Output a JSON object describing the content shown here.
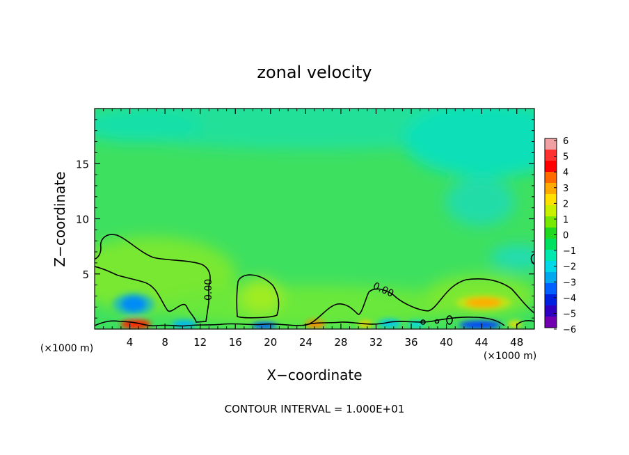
{
  "chart_data": {
    "type": "heatmap",
    "title": "zonal velocity",
    "xlabel": "X−coordinate",
    "ylabel": "Z−coordinate",
    "x_unit_left": "(×1000 m)",
    "x_unit_right": "(×1000 m)",
    "footer": "CONTOUR INTERVAL = 1.000E+01",
    "xlim": [
      0,
      50
    ],
    "ylim": [
      0,
      20
    ],
    "x_ticks": [
      4,
      8,
      12,
      16,
      20,
      24,
      28,
      32,
      36,
      40,
      44,
      48
    ],
    "x_tick_labels": [
      "4",
      "8",
      "12",
      "16",
      "20",
      "24",
      "28",
      "32",
      "36",
      "40",
      "44",
      "48"
    ],
    "y_ticks": [
      5,
      10,
      15
    ],
    "y_tick_labels": [
      "5",
      "10",
      "15"
    ],
    "contour_label": "0.00",
    "colorbar": {
      "range": [
        -6,
        6
      ],
      "tick_labels": [
        "6",
        "5",
        "4",
        "3",
        "2",
        "1",
        "0",
        "−1",
        "−2",
        "−3",
        "−4",
        "−5",
        "−6"
      ],
      "colors": [
        "#f0a0a0",
        "#ff3030",
        "#ff0000",
        "#ff6a00",
        "#ffaa00",
        "#ffe000",
        "#c8f000",
        "#78e800",
        "#20d820",
        "#00e060",
        "#00e8b0",
        "#00d8e8",
        "#00a8f0",
        "#0060ff",
        "#0020e0",
        "#3000c0",
        "#7000b0"
      ]
    },
    "features": [
      {
        "x": 4.8,
        "z": 0.4,
        "value": 5.5
      },
      {
        "x": 4.5,
        "z": 2.3,
        "value": -3.2
      },
      {
        "x": 43.5,
        "z": 2.5,
        "value": 3.5
      },
      {
        "x": 43.8,
        "z": 0.3,
        "value": -4.5
      },
      {
        "x": 17.5,
        "z": 0.3,
        "value": -3.0
      },
      {
        "x": 25.0,
        "z": 0.3,
        "value": 3.0
      },
      {
        "x": 10.0,
        "z": 0.3,
        "value": -2.8
      },
      {
        "x": 19.0,
        "z": 3.0,
        "value": 2.0
      },
      {
        "x": 33.5,
        "z": 0.4,
        "value": -2.5
      },
      {
        "x": 44.0,
        "z": 16.5,
        "value": -1.8
      },
      {
        "x": 48.5,
        "z": 7.5,
        "value": -1.5
      },
      {
        "x": 10.0,
        "z": 8.0,
        "value": 1.2
      }
    ]
  }
}
